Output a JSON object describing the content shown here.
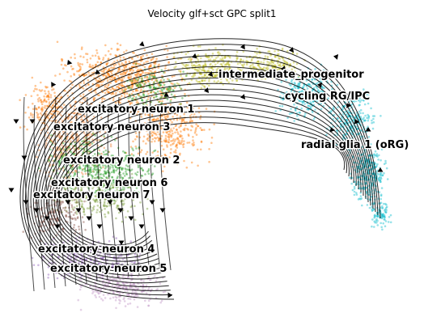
{
  "chart_data": {
    "type": "scatter",
    "title": "Velocity glf+sct GPC split1",
    "xlabel": "",
    "ylabel": "",
    "grid": false,
    "legend": "on data",
    "overlay": "velocity stream lines",
    "clusters": [
      {
        "name": "intermediate_progenitor",
        "color": "#bcbd22"
      },
      {
        "name": "cycling RG/IPC",
        "color": "#17becf"
      },
      {
        "name": "excitatory neuron 1",
        "color": "#ff7f0e"
      },
      {
        "name": "excitatory neuron 3",
        "color": "#e8823a"
      },
      {
        "name": "radial glia 1 (oRG)",
        "color": "#17becf"
      },
      {
        "name": "excitatory neuron 2",
        "color": "#2ca02c"
      },
      {
        "name": "excitatory neuron 6",
        "color": "#7f9f3f"
      },
      {
        "name": "excitatory neuron 7",
        "color": "#8c564b"
      },
      {
        "name": "excitatory neuron 4",
        "color": "#9467bd"
      },
      {
        "name": "excitatory neuron 5",
        "color": "#c49ac8"
      }
    ]
  }
}
